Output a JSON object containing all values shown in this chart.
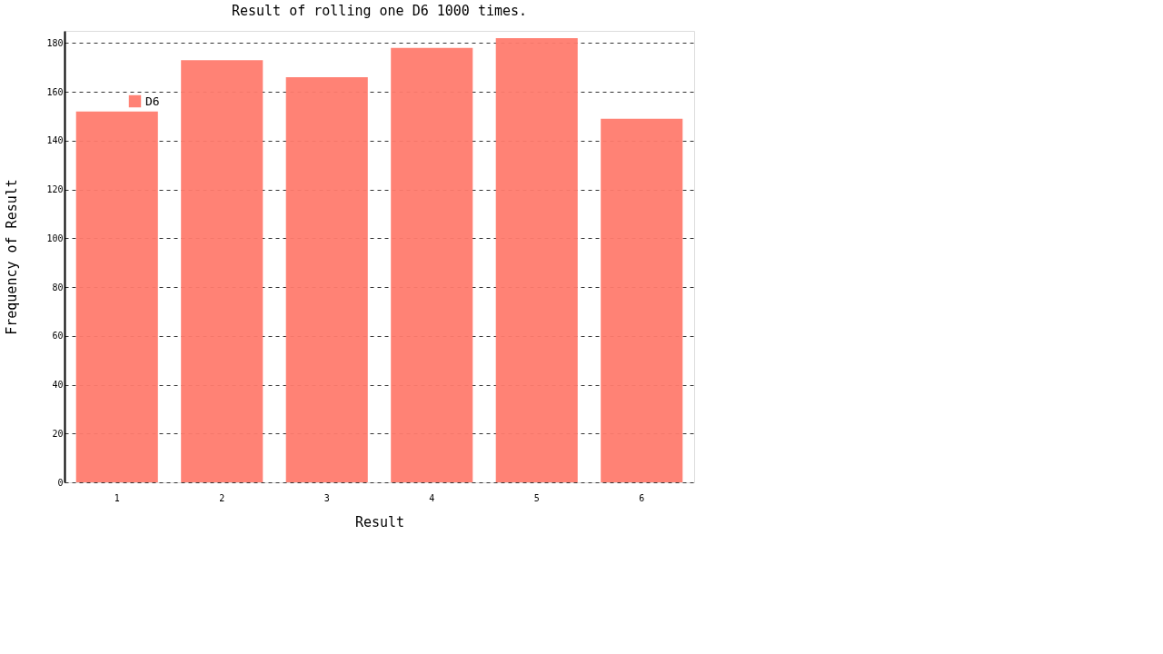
{
  "chart_data": {
    "type": "bar",
    "title": "Result of rolling one D6 1000 times.",
    "xlabel": "Result",
    "ylabel": "Frequency of Result",
    "categories": [
      "1",
      "2",
      "3",
      "4",
      "5",
      "6"
    ],
    "series": [
      {
        "name": "D6",
        "color": "#ff7b6e",
        "values": [
          152,
          173,
          166,
          178,
          182,
          149
        ]
      }
    ],
    "ylim": [
      0,
      185
    ],
    "yticks": [
      0,
      20,
      40,
      60,
      80,
      100,
      120,
      140,
      160,
      180
    ],
    "grid": "y",
    "legend": "top left"
  }
}
